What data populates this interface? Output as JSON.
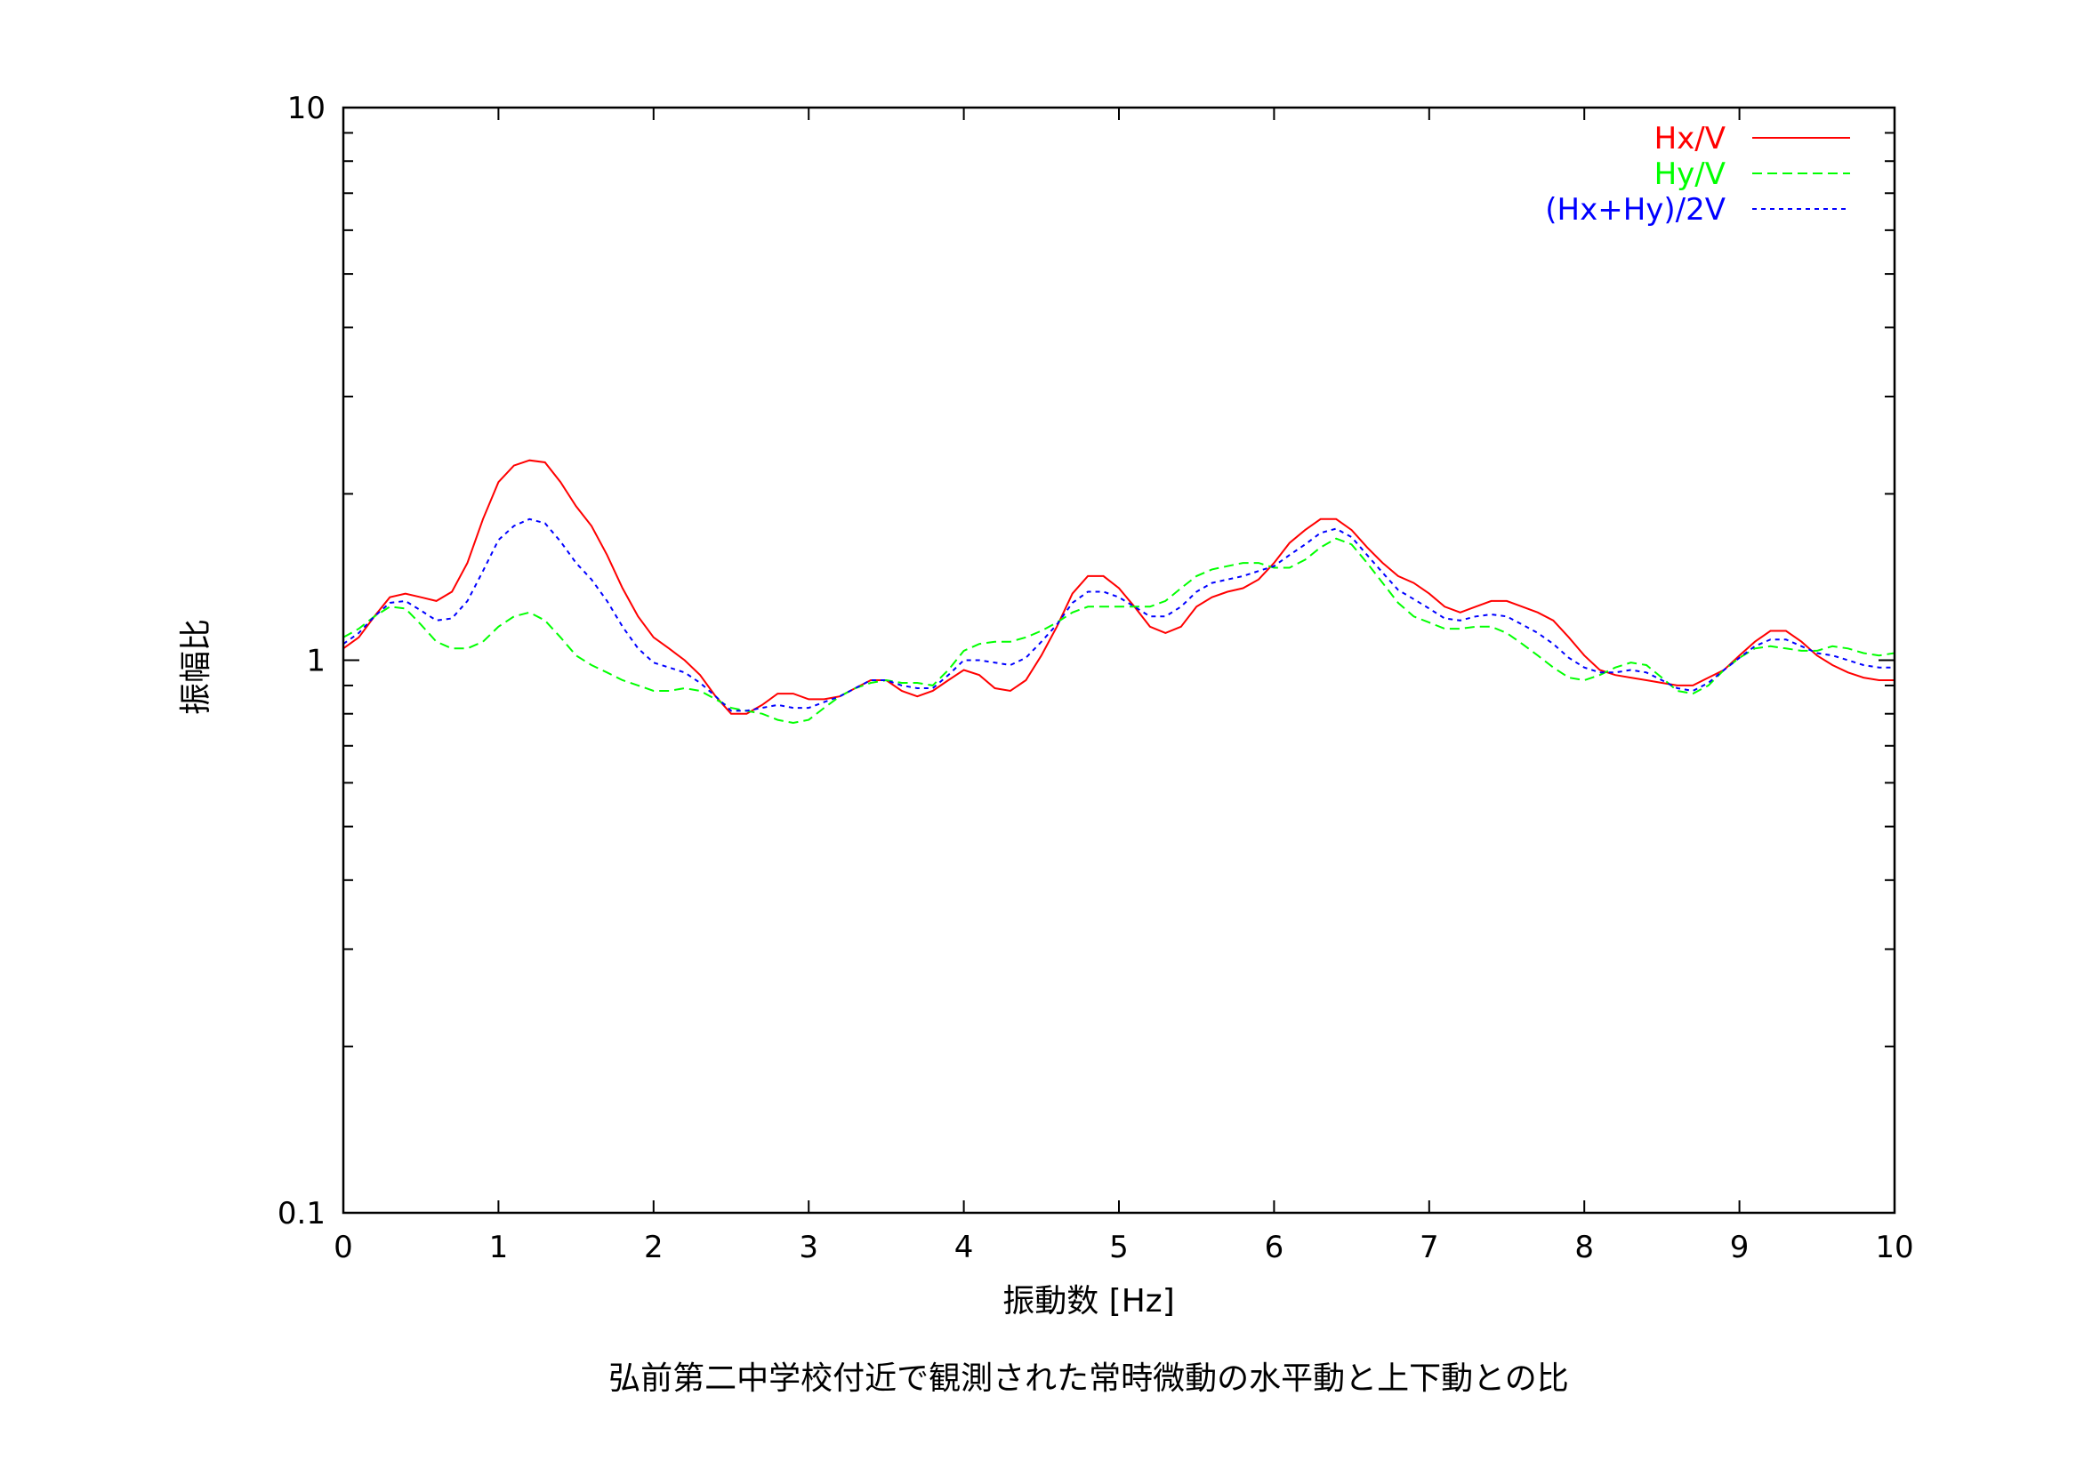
{
  "chart_data": {
    "type": "line",
    "title": "弘前第二中学校付近で観測された常時微動の水平動と上下動との比",
    "xlabel": "振動数 [Hz]",
    "ylabel": "振幅比",
    "xlim": [
      0,
      10
    ],
    "ylim": [
      0.1,
      10
    ],
    "yscale": "log",
    "grid": false,
    "legend_position": "top-right",
    "xticks": [
      "0",
      "1",
      "2",
      "3",
      "4",
      "5",
      "6",
      "7",
      "8",
      "9",
      "10"
    ],
    "yticks": [
      "0.1",
      "1",
      "10"
    ],
    "series": [
      {
        "name": "Hx/V",
        "color": "#ff0000",
        "dash": "solid",
        "x": [
          0,
          0.1,
          0.2,
          0.3,
          0.4,
          0.5,
          0.6,
          0.7,
          0.8,
          0.9,
          1.0,
          1.1,
          1.2,
          1.3,
          1.4,
          1.5,
          1.6,
          1.7,
          1.8,
          1.9,
          2.0,
          2.1,
          2.2,
          2.3,
          2.4,
          2.5,
          2.6,
          2.7,
          2.8,
          2.9,
          3.0,
          3.1,
          3.2,
          3.3,
          3.4,
          3.5,
          3.6,
          3.7,
          3.8,
          3.9,
          4.0,
          4.1,
          4.2,
          4.3,
          4.4,
          4.5,
          4.6,
          4.7,
          4.8,
          4.9,
          5.0,
          5.1,
          5.2,
          5.3,
          5.4,
          5.5,
          5.6,
          5.7,
          5.8,
          5.9,
          6.0,
          6.1,
          6.2,
          6.3,
          6.4,
          6.5,
          6.6,
          6.7,
          6.8,
          6.9,
          7.0,
          7.1,
          7.2,
          7.3,
          7.4,
          7.5,
          7.6,
          7.7,
          7.8,
          7.9,
          8.0,
          8.1,
          8.2,
          8.3,
          8.4,
          8.5,
          8.6,
          8.7,
          8.8,
          8.9,
          9.0,
          9.1,
          9.2,
          9.3,
          9.4,
          9.5,
          9.6,
          9.7,
          9.8,
          9.9,
          10.0
        ],
        "values": [
          1.05,
          1.1,
          1.2,
          1.3,
          1.32,
          1.3,
          1.28,
          1.33,
          1.5,
          1.8,
          2.1,
          2.25,
          2.3,
          2.28,
          2.1,
          1.9,
          1.75,
          1.55,
          1.35,
          1.2,
          1.1,
          1.05,
          1.0,
          0.94,
          0.86,
          0.8,
          0.8,
          0.83,
          0.87,
          0.87,
          0.85,
          0.85,
          0.86,
          0.89,
          0.92,
          0.92,
          0.88,
          0.86,
          0.88,
          0.92,
          0.96,
          0.94,
          0.89,
          0.88,
          0.92,
          1.02,
          1.15,
          1.32,
          1.42,
          1.42,
          1.35,
          1.25,
          1.15,
          1.12,
          1.15,
          1.25,
          1.3,
          1.33,
          1.35,
          1.4,
          1.5,
          1.63,
          1.72,
          1.8,
          1.8,
          1.72,
          1.6,
          1.5,
          1.42,
          1.38,
          1.32,
          1.25,
          1.22,
          1.25,
          1.28,
          1.28,
          1.25,
          1.22,
          1.18,
          1.1,
          1.02,
          0.96,
          0.94,
          0.93,
          0.92,
          0.91,
          0.9,
          0.9,
          0.93,
          0.96,
          1.02,
          1.08,
          1.13,
          1.13,
          1.08,
          1.02,
          0.98,
          0.95,
          0.93,
          0.92,
          0.92
        ]
      },
      {
        "name": "Hy/V",
        "color": "#00ff00",
        "dash": "long-dash",
        "x": [
          0,
          0.1,
          0.2,
          0.3,
          0.4,
          0.5,
          0.6,
          0.7,
          0.8,
          0.9,
          1.0,
          1.1,
          1.2,
          1.3,
          1.4,
          1.5,
          1.6,
          1.7,
          1.8,
          1.9,
          2.0,
          2.1,
          2.2,
          2.3,
          2.4,
          2.5,
          2.6,
          2.7,
          2.8,
          2.9,
          3.0,
          3.1,
          3.2,
          3.3,
          3.4,
          3.5,
          3.6,
          3.7,
          3.8,
          3.9,
          4.0,
          4.1,
          4.2,
          4.3,
          4.4,
          4.5,
          4.6,
          4.7,
          4.8,
          4.9,
          5.0,
          5.1,
          5.2,
          5.3,
          5.4,
          5.5,
          5.6,
          5.7,
          5.8,
          5.9,
          6.0,
          6.1,
          6.2,
          6.3,
          6.4,
          6.5,
          6.6,
          6.7,
          6.8,
          6.9,
          7.0,
          7.1,
          7.2,
          7.3,
          7.4,
          7.5,
          7.6,
          7.7,
          7.8,
          7.9,
          8.0,
          8.1,
          8.2,
          8.3,
          8.4,
          8.5,
          8.6,
          8.7,
          8.8,
          8.9,
          9.0,
          9.1,
          9.2,
          9.3,
          9.4,
          9.5,
          9.6,
          9.7,
          9.8,
          9.9,
          10.0
        ],
        "values": [
          1.1,
          1.14,
          1.2,
          1.25,
          1.24,
          1.16,
          1.08,
          1.05,
          1.05,
          1.08,
          1.15,
          1.2,
          1.22,
          1.18,
          1.1,
          1.02,
          0.98,
          0.95,
          0.92,
          0.9,
          0.88,
          0.88,
          0.89,
          0.88,
          0.85,
          0.82,
          0.81,
          0.8,
          0.78,
          0.77,
          0.78,
          0.82,
          0.86,
          0.89,
          0.91,
          0.92,
          0.91,
          0.91,
          0.9,
          0.96,
          1.04,
          1.07,
          1.08,
          1.08,
          1.1,
          1.13,
          1.17,
          1.22,
          1.25,
          1.25,
          1.25,
          1.25,
          1.25,
          1.28,
          1.35,
          1.42,
          1.46,
          1.48,
          1.5,
          1.5,
          1.47,
          1.47,
          1.52,
          1.6,
          1.66,
          1.62,
          1.5,
          1.38,
          1.27,
          1.2,
          1.17,
          1.14,
          1.14,
          1.15,
          1.15,
          1.12,
          1.07,
          1.02,
          0.97,
          0.93,
          0.92,
          0.94,
          0.97,
          0.99,
          0.98,
          0.93,
          0.88,
          0.87,
          0.9,
          0.96,
          1.01,
          1.05,
          1.06,
          1.05,
          1.04,
          1.04,
          1.06,
          1.05,
          1.03,
          1.02,
          1.03
        ]
      },
      {
        "name": "(Hx+Hy)/2V",
        "color": "#0000ff",
        "dash": "short-dash",
        "x": [
          0,
          0.1,
          0.2,
          0.3,
          0.4,
          0.5,
          0.6,
          0.7,
          0.8,
          0.9,
          1.0,
          1.1,
          1.2,
          1.3,
          1.4,
          1.5,
          1.6,
          1.7,
          1.8,
          1.9,
          2.0,
          2.1,
          2.2,
          2.3,
          2.4,
          2.5,
          2.6,
          2.7,
          2.8,
          2.9,
          3.0,
          3.1,
          3.2,
          3.3,
          3.4,
          3.5,
          3.6,
          3.7,
          3.8,
          3.9,
          4.0,
          4.1,
          4.2,
          4.3,
          4.4,
          4.5,
          4.6,
          4.7,
          4.8,
          4.9,
          5.0,
          5.1,
          5.2,
          5.3,
          5.4,
          5.5,
          5.6,
          5.7,
          5.8,
          5.9,
          6.0,
          6.1,
          6.2,
          6.3,
          6.4,
          6.5,
          6.6,
          6.7,
          6.8,
          6.9,
          7.0,
          7.1,
          7.2,
          7.3,
          7.4,
          7.5,
          7.6,
          7.7,
          7.8,
          7.9,
          8.0,
          8.1,
          8.2,
          8.3,
          8.4,
          8.5,
          8.6,
          8.7,
          8.8,
          8.9,
          9.0,
          9.1,
          9.2,
          9.3,
          9.4,
          9.5,
          9.6,
          9.7,
          9.8,
          9.9,
          10.0
        ],
        "values": [
          1.07,
          1.12,
          1.2,
          1.27,
          1.28,
          1.23,
          1.18,
          1.19,
          1.28,
          1.45,
          1.65,
          1.75,
          1.8,
          1.77,
          1.64,
          1.5,
          1.4,
          1.28,
          1.15,
          1.05,
          0.99,
          0.97,
          0.95,
          0.91,
          0.86,
          0.81,
          0.81,
          0.82,
          0.83,
          0.82,
          0.82,
          0.84,
          0.86,
          0.89,
          0.92,
          0.92,
          0.9,
          0.89,
          0.89,
          0.94,
          1.0,
          1.0,
          0.99,
          0.98,
          1.01,
          1.08,
          1.16,
          1.27,
          1.33,
          1.33,
          1.3,
          1.25,
          1.2,
          1.2,
          1.25,
          1.33,
          1.38,
          1.4,
          1.42,
          1.45,
          1.48,
          1.55,
          1.62,
          1.7,
          1.73,
          1.67,
          1.55,
          1.44,
          1.34,
          1.29,
          1.24,
          1.19,
          1.18,
          1.2,
          1.21,
          1.2,
          1.16,
          1.12,
          1.07,
          1.01,
          0.97,
          0.95,
          0.95,
          0.96,
          0.95,
          0.92,
          0.89,
          0.88,
          0.91,
          0.96,
          1.01,
          1.06,
          1.09,
          1.09,
          1.06,
          1.03,
          1.02,
          1.0,
          0.98,
          0.97,
          0.97
        ]
      }
    ]
  }
}
